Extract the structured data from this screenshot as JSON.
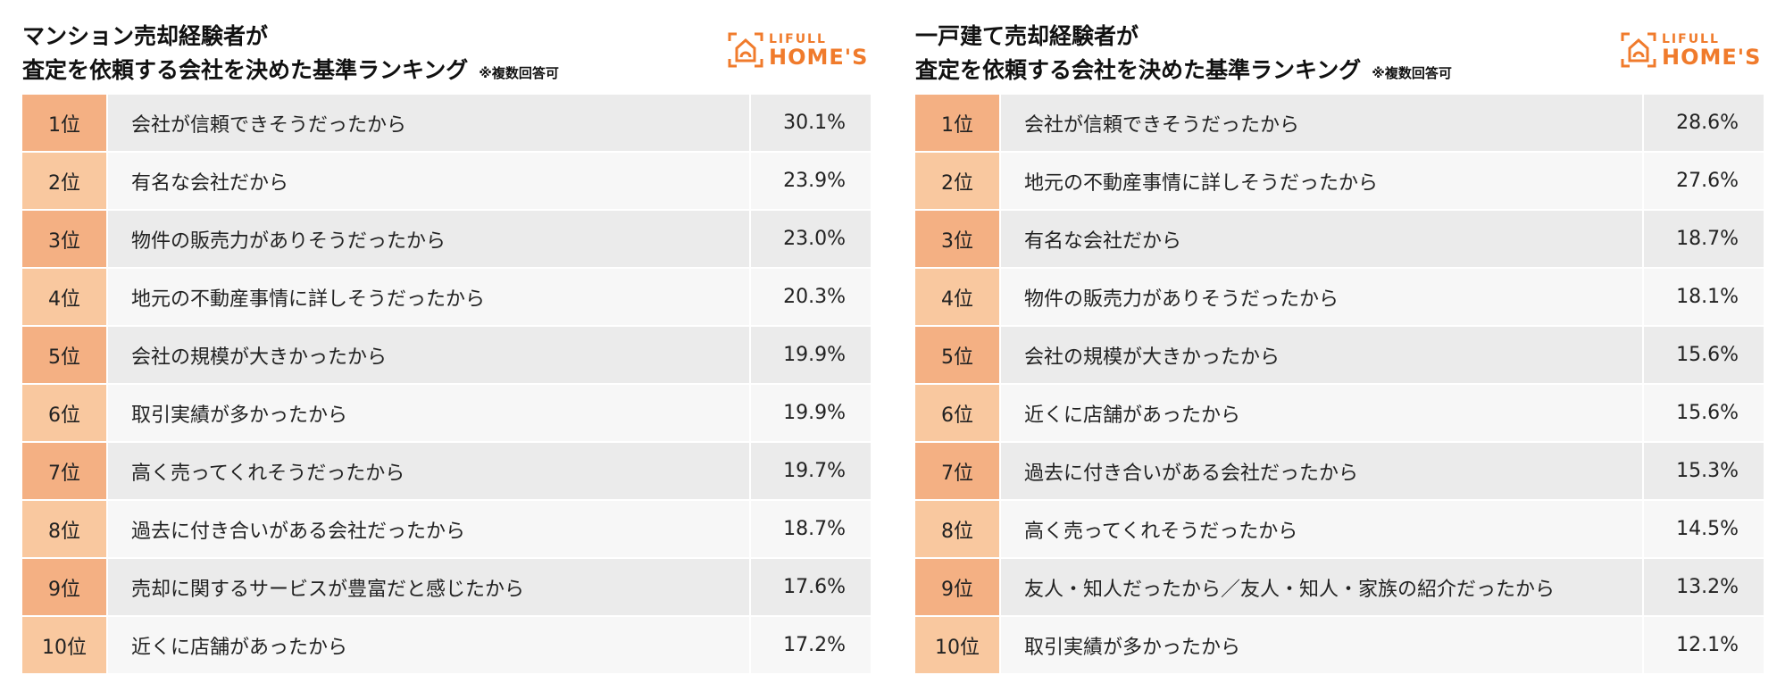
{
  "logo": {
    "line1": "LIFULL",
    "line2": "HOME'S"
  },
  "panels": [
    {
      "title_line1": "マンション売却経験者が",
      "title_line2": "査定を依頼する会社を決めた基準ランキング",
      "note": "※複数回答可",
      "rows": [
        {
          "rank": "1位",
          "reason": "会社が信頼できそうだったから",
          "pct": "30.1%"
        },
        {
          "rank": "2位",
          "reason": "有名な会社だから",
          "pct": "23.9%"
        },
        {
          "rank": "3位",
          "reason": "物件の販売力がありそうだったから",
          "pct": "23.0%"
        },
        {
          "rank": "4位",
          "reason": "地元の不動産事情に詳しそうだったから",
          "pct": "20.3%"
        },
        {
          "rank": "5位",
          "reason": "会社の規模が大きかったから",
          "pct": "19.9%"
        },
        {
          "rank": "6位",
          "reason": "取引実績が多かったから",
          "pct": "19.9%"
        },
        {
          "rank": "7位",
          "reason": "高く売ってくれそうだったから",
          "pct": "19.7%"
        },
        {
          "rank": "8位",
          "reason": "過去に付き合いがある会社だったから",
          "pct": "18.7%"
        },
        {
          "rank": "9位",
          "reason": "売却に関するサービスが豊富だと感じたから",
          "pct": "17.6%"
        },
        {
          "rank": "10位",
          "reason": "近くに店舗があったから",
          "pct": "17.2%"
        }
      ]
    },
    {
      "title_line1": "一戸建て売却経験者が",
      "title_line2": "査定を依頼する会社を決めた基準ランキング",
      "note": "※複数回答可",
      "rows": [
        {
          "rank": "1位",
          "reason": "会社が信頼できそうだったから",
          "pct": "28.6%"
        },
        {
          "rank": "2位",
          "reason": "地元の不動産事情に詳しそうだったから",
          "pct": "27.6%"
        },
        {
          "rank": "3位",
          "reason": "有名な会社だから",
          "pct": "18.7%"
        },
        {
          "rank": "4位",
          "reason": "物件の販売力がありそうだったから",
          "pct": "18.1%"
        },
        {
          "rank": "5位",
          "reason": "会社の規模が大きかったから",
          "pct": "15.6%"
        },
        {
          "rank": "6位",
          "reason": "近くに店舗があったから",
          "pct": "15.6%"
        },
        {
          "rank": "7位",
          "reason": "過去に付き合いがある会社だったから",
          "pct": "15.3%"
        },
        {
          "rank": "8位",
          "reason": "高く売ってくれそうだったから",
          "pct": "14.5%"
        },
        {
          "rank": "9位",
          "reason": "友人・知人だったから／友人・知人・家族の紹介だったから",
          "pct": "13.2%"
        },
        {
          "rank": "10位",
          "reason": "取引実績が多かったから",
          "pct": "12.1%"
        }
      ]
    }
  ]
}
